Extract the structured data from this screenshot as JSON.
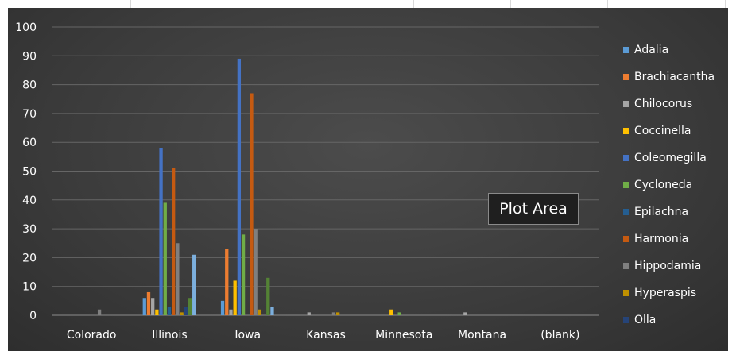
{
  "chart_data": {
    "type": "bar",
    "categories": [
      "Colorado",
      "Illinois",
      "Iowa",
      "Kansas",
      "Minnesota",
      "Montana",
      "(blank)"
    ],
    "ylim": [
      0,
      100
    ],
    "yticks": [
      0,
      10,
      20,
      30,
      40,
      50,
      60,
      70,
      80,
      90,
      100
    ],
    "grid": true,
    "legend_position": "right",
    "series": [
      {
        "name": "Adalia",
        "color": "#5b9bd5",
        "values": [
          0,
          6,
          5,
          0,
          0,
          0,
          0
        ]
      },
      {
        "name": "Brachiacantha",
        "color": "#ed7d31",
        "values": [
          0,
          8,
          23,
          0,
          0,
          0,
          0
        ]
      },
      {
        "name": "Chilocorus",
        "color": "#a5a5a5",
        "values": [
          0,
          6,
          2,
          1,
          0,
          1,
          0
        ]
      },
      {
        "name": "Coccinella",
        "color": "#ffc000",
        "values": [
          0,
          2,
          12,
          0,
          2,
          0,
          0
        ]
      },
      {
        "name": "Coleomegilla",
        "color": "#4472c4",
        "values": [
          0,
          58,
          89,
          0,
          0,
          0,
          0
        ]
      },
      {
        "name": "Cycloneda",
        "color": "#70ad47",
        "values": [
          0,
          39,
          28,
          0,
          1,
          0,
          0
        ]
      },
      {
        "name": "Epilachna",
        "color": "#255e91",
        "values": [
          0,
          3,
          0,
          0,
          0,
          0,
          0
        ]
      },
      {
        "name": "Harmonia",
        "color": "#c55a11",
        "values": [
          0,
          51,
          77,
          0,
          0,
          0,
          0
        ]
      },
      {
        "name": "Hippodamia",
        "color": "#7f7f7f",
        "values": [
          2,
          25,
          30,
          1,
          0,
          0,
          0
        ]
      },
      {
        "name": "Hyperaspis",
        "color": "#bf9000",
        "values": [
          0,
          1,
          2,
          1,
          0,
          0,
          0
        ]
      },
      {
        "name": "Olla",
        "color": "#264478",
        "values": [
          0,
          3,
          0,
          0,
          0,
          0,
          0
        ]
      },
      {
        "name": "",
        "color": "#548235",
        "values": [
          0,
          6,
          13,
          0,
          0,
          0,
          0
        ]
      },
      {
        "name": "",
        "color": "#7cafdd",
        "values": [
          0,
          21,
          3,
          0,
          0,
          0,
          0
        ]
      }
    ]
  },
  "tooltip": {
    "text": "Plot Area"
  },
  "colors": {
    "text": "#ffffff",
    "gridline": "#666666",
    "axis": "#8c8c8c"
  }
}
